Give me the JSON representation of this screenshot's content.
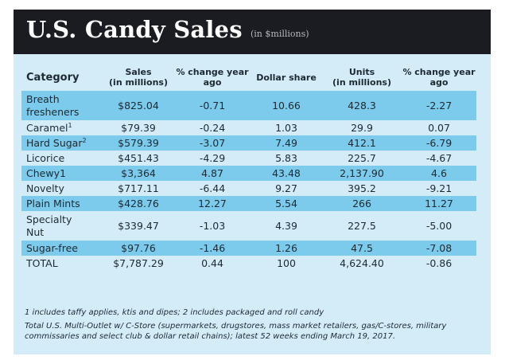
{
  "header": {
    "title": "U.S. Candy Sales",
    "subtitle": "(in $millions)"
  },
  "table": {
    "columns": [
      {
        "line1": "Category",
        "line2": ""
      },
      {
        "line1": "Sales",
        "line2": "(in millions)"
      },
      {
        "line1": "% change year",
        "line2": "ago"
      },
      {
        "line1": "Dollar share",
        "line2": ""
      },
      {
        "line1": "Units",
        "line2": "(in millions)"
      },
      {
        "line1": "% change year",
        "line2": "ago"
      }
    ],
    "rows": [
      {
        "category": "Breath fresheners",
        "cat_line1": "Breath",
        "cat_line2": "fresheners",
        "sup": "",
        "sales": "$825.04",
        "sales_change": "-0.71",
        "dollar_share": "10.66",
        "units": "428.3",
        "units_change": "-2.27",
        "highlight": true
      },
      {
        "category": "Caramel",
        "sup": "1",
        "sales": "$79.39",
        "sales_change": "-0.24",
        "dollar_share": "1.03",
        "units": "29.9",
        "units_change": "0.07",
        "highlight": false
      },
      {
        "category": "Hard Sugar",
        "sup": "2",
        "sales": "$579.39",
        "sales_change": "-3.07",
        "dollar_share": "7.49",
        "units": "412.1",
        "units_change": "-6.79",
        "highlight": true
      },
      {
        "category": "Licorice",
        "sup": "",
        "sales": "$451.43",
        "sales_change": "-4.29",
        "dollar_share": "5.83",
        "units": "225.7",
        "units_change": "-4.67",
        "highlight": false
      },
      {
        "category": "Chewy1",
        "sup": "",
        "sales": "$3,364",
        "sales_change": "4.87",
        "dollar_share": "43.48",
        "units": "2,137.90",
        "units_change": "4.6",
        "highlight": true
      },
      {
        "category": "Novelty",
        "sup": "",
        "sales": "$717.11",
        "sales_change": "-6.44",
        "dollar_share": "9.27",
        "units": "395.2",
        "units_change": "-9.21",
        "highlight": false
      },
      {
        "category": "Plain Mints",
        "sup": "",
        "sales": "$428.76",
        "sales_change": "12.27",
        "dollar_share": "5.54",
        "units": "266",
        "units_change": "11.27",
        "highlight": true
      },
      {
        "category": "Specialty Nut",
        "cat_line1": "Specialty",
        "cat_line2": "Nut",
        "sup": "",
        "sales": "$339.47",
        "sales_change": "-1.03",
        "dollar_share": "4.39",
        "units": "227.5",
        "units_change": "-5.00",
        "highlight": false
      },
      {
        "category": "Sugar-free",
        "sup": "",
        "sales": "$97.76",
        "sales_change": "-1.46",
        "dollar_share": "1.26",
        "units": "47.5",
        "units_change": "-7.08",
        "highlight": true
      },
      {
        "category": "TOTAL",
        "sup": "",
        "sales": "$7,787.29",
        "sales_change": "0.44",
        "dollar_share": "100",
        "units": "4,624.40",
        "units_change": "-0.86",
        "highlight": false
      }
    ]
  },
  "notes": {
    "footnote": "1 includes taffy applies, ktis and dipes; 2 includes packaged and roll candy",
    "source": "Total U.S. Multi-Outlet w/ C-Store (supermarkets, drugstores, mass market retailers, gas/C-stores, military commissaries and select club & dollar retail chains); latest 52 weeks ending March 19, 2017."
  },
  "colors": {
    "header_bg": "#1a1c22",
    "panel_bg": "#d4ebf8",
    "highlight_row": "#7ccaec"
  }
}
